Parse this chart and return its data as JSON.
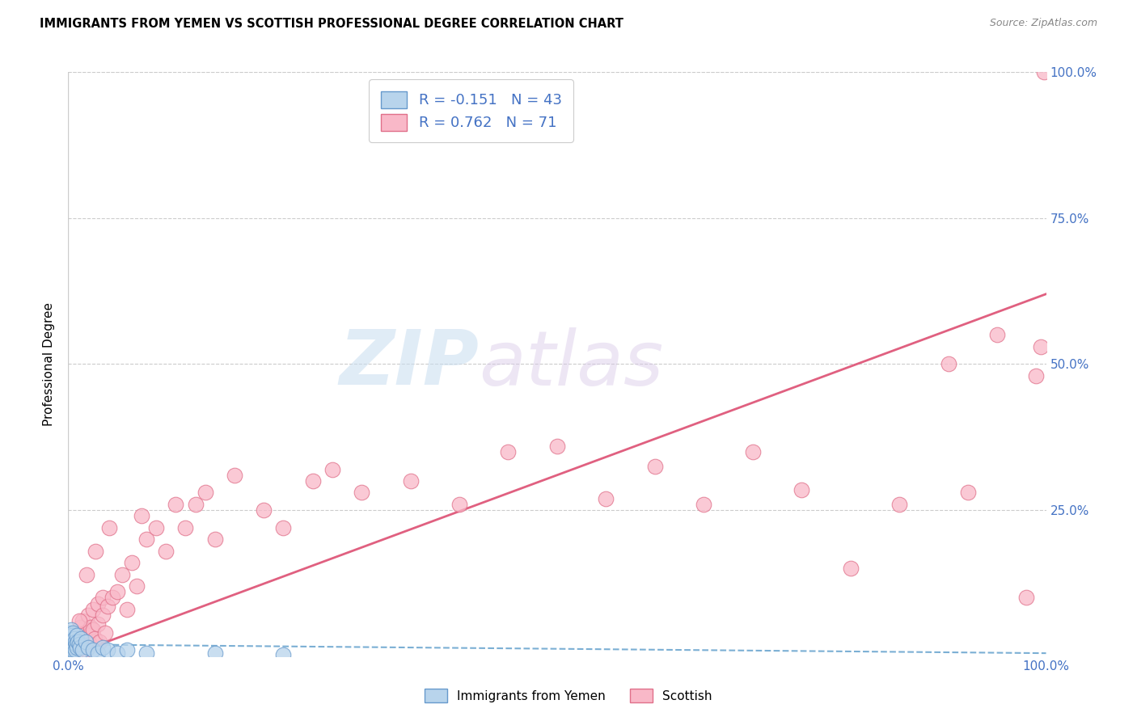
{
  "title": "IMMIGRANTS FROM YEMEN VS SCOTTISH PROFESSIONAL DEGREE CORRELATION CHART",
  "source": "Source: ZipAtlas.com",
  "ylabel": "Professional Degree",
  "legend_label1": "Immigrants from Yemen",
  "legend_label2": "Scottish",
  "R1": -0.151,
  "N1": 43,
  "R2": 0.762,
  "N2": 71,
  "color_blue_fill": "#b8d4ec",
  "color_blue_edge": "#6699cc",
  "color_blue_line": "#7bafd4",
  "color_pink_fill": "#f9b8c8",
  "color_pink_edge": "#e0708a",
  "color_pink_line": "#e06080",
  "color_text_blue": "#4472c4",
  "watermark_zip": "ZIP",
  "watermark_atlas": "atlas",
  "xlim": [
    0,
    100
  ],
  "ylim": [
    0,
    100
  ],
  "trend_sc_x0": 0,
  "trend_sc_y0": 0,
  "trend_sc_x1": 100,
  "trend_sc_y1": 62,
  "trend_ye_x0": 0,
  "trend_ye_y0": 2.0,
  "trend_ye_x1": 100,
  "trend_ye_y1": 0.5,
  "x_scottish": [
    0.3,
    0.5,
    0.7,
    0.8,
    1.0,
    1.0,
    1.2,
    1.2,
    1.3,
    1.5,
    1.5,
    1.7,
    1.8,
    2.0,
    2.0,
    2.2,
    2.3,
    2.5,
    2.5,
    2.7,
    3.0,
    3.0,
    3.2,
    3.5,
    3.5,
    3.8,
    4.0,
    4.5,
    5.0,
    5.5,
    6.0,
    6.5,
    7.0,
    8.0,
    9.0,
    10.0,
    12.0,
    13.0,
    14.0,
    15.0,
    17.0,
    20.0,
    22.0,
    25.0,
    27.0,
    30.0,
    35.0,
    40.0,
    45.0,
    50.0,
    55.0,
    60.0,
    65.0,
    70.0,
    75.0,
    80.0,
    85.0,
    90.0,
    92.0,
    95.0,
    98.0,
    99.0,
    99.5,
    99.8,
    0.6,
    1.1,
    1.9,
    2.8,
    4.2,
    7.5,
    11.0
  ],
  "y_scottish": [
    1.5,
    2.0,
    1.0,
    3.5,
    2.0,
    4.0,
    1.5,
    5.0,
    3.0,
    2.5,
    6.0,
    4.0,
    1.0,
    3.5,
    7.0,
    2.0,
    5.0,
    4.5,
    8.0,
    3.0,
    5.5,
    9.0,
    2.5,
    7.0,
    10.0,
    4.0,
    8.5,
    10.0,
    11.0,
    14.0,
    8.0,
    16.0,
    12.0,
    20.0,
    22.0,
    18.0,
    22.0,
    26.0,
    28.0,
    20.0,
    31.0,
    25.0,
    22.0,
    30.0,
    32.0,
    28.0,
    30.0,
    26.0,
    35.0,
    36.0,
    27.0,
    32.5,
    26.0,
    35.0,
    28.5,
    15.0,
    26.0,
    50.0,
    28.0,
    55.0,
    10.0,
    48.0,
    53.0,
    100.0,
    3.5,
    6.0,
    14.0,
    18.0,
    22.0,
    24.0,
    26.0
  ],
  "x_yemen": [
    0.05,
    0.08,
    0.1,
    0.12,
    0.15,
    0.18,
    0.2,
    0.22,
    0.25,
    0.28,
    0.3,
    0.32,
    0.35,
    0.38,
    0.4,
    0.42,
    0.45,
    0.48,
    0.5,
    0.55,
    0.6,
    0.65,
    0.7,
    0.75,
    0.8,
    0.85,
    0.9,
    1.0,
    1.1,
    1.2,
    1.3,
    1.5,
    1.8,
    2.0,
    2.5,
    3.0,
    3.5,
    4.0,
    5.0,
    6.0,
    8.0,
    15.0,
    22.0
  ],
  "y_yemen": [
    1.0,
    2.5,
    3.0,
    1.5,
    4.0,
    2.0,
    1.5,
    3.5,
    1.0,
    2.5,
    4.5,
    1.8,
    3.0,
    2.0,
    1.5,
    3.5,
    2.5,
    1.0,
    4.0,
    2.0,
    1.5,
    3.0,
    2.5,
    1.0,
    2.0,
    3.5,
    1.5,
    2.5,
    2.0,
    1.5,
    3.0,
    1.0,
    2.5,
    1.5,
    1.0,
    0.5,
    1.5,
    1.0,
    0.5,
    1.0,
    0.5,
    0.5,
    0.3
  ]
}
